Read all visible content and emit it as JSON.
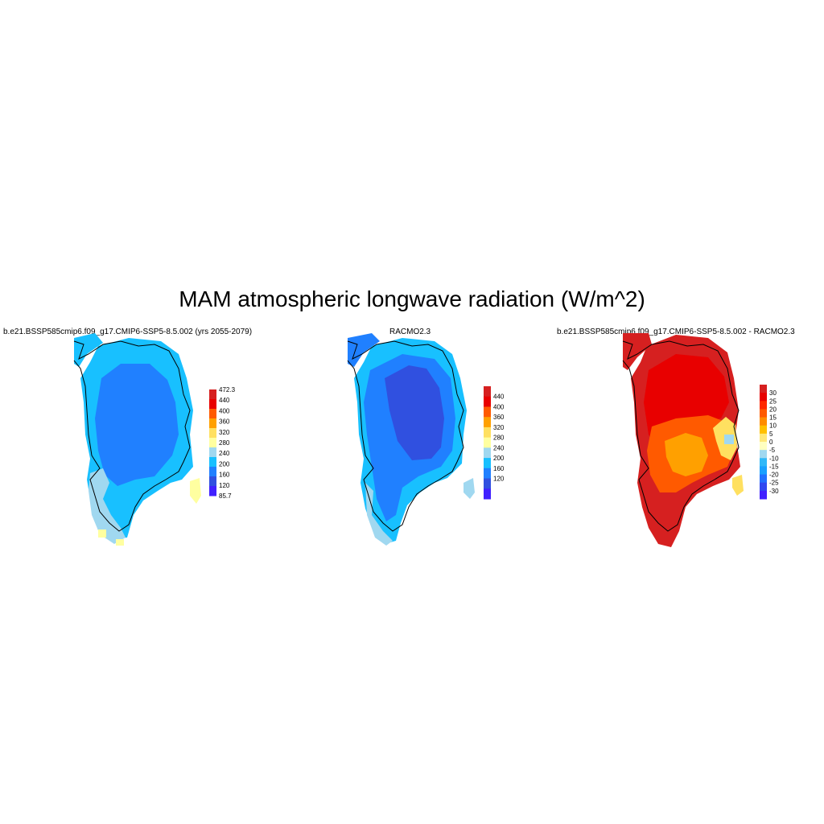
{
  "title": "MAM atmospheric longwave radiation (W/m^2)",
  "panels": [
    {
      "title": "b.e21.BSSP585cmip6.f09_g17.CMIP6-SSP5-8.5.002 (yrs 2055-2079)",
      "colorbar": {
        "labels": [
          "472.3",
          "440",
          "400",
          "360",
          "320",
          "280",
          "240",
          "200",
          "160",
          "120",
          "85.7"
        ],
        "colors": [
          "#d62020",
          "#e80000",
          "#ff5a00",
          "#ffa000",
          "#ffe060",
          "#ffffa0",
          "#a0d8f0",
          "#18c0ff",
          "#2080ff",
          "#3050e0",
          "#4020ff"
        ]
      }
    },
    {
      "title": "RACMO2.3",
      "colorbar": {
        "labels": [
          "440",
          "400",
          "360",
          "320",
          "280",
          "240",
          "200",
          "160",
          "120"
        ],
        "colors": [
          "#d62020",
          "#e80000",
          "#ff5a00",
          "#ffa000",
          "#ffe060",
          "#ffffa0",
          "#a0d8f0",
          "#18c0ff",
          "#2080ff",
          "#3050e0",
          "#4020ff"
        ]
      }
    },
    {
      "title": "b.e21.BSSP585cmip6.f09_g17.CMIP6-SSP5-8.5.002 - RACMO2.3",
      "colorbar": {
        "labels": [
          "30",
          "25",
          "20",
          "15",
          "10",
          "5",
          "0",
          "-5",
          "-10",
          "-15",
          "-20",
          "-25",
          "-30"
        ],
        "colors": [
          "#d62020",
          "#e80000",
          "#ff2800",
          "#ff5a00",
          "#ff8c00",
          "#ffc000",
          "#ffe878",
          "#ffffc0",
          "#a0d8f0",
          "#30b8f8",
          "#18a0ff",
          "#2070ff",
          "#3048f0",
          "#4020ff"
        ]
      }
    }
  ]
}
